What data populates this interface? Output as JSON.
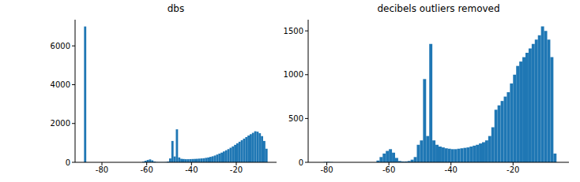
{
  "chart_data": [
    {
      "type": "histogram",
      "title": "dbs",
      "color": "#1f77b4",
      "bins": [
        -88,
        -87,
        -86,
        -85,
        -84,
        -83,
        -82,
        -81,
        -80,
        -79,
        -78,
        -77,
        -76,
        -75,
        -74,
        -73,
        -72,
        -71,
        -70,
        -69,
        -68,
        -67,
        -66,
        -65,
        -64,
        -63,
        -62,
        -61,
        -60,
        -59,
        -58,
        -57,
        -56,
        -55,
        -54,
        -53,
        -52,
        -51,
        -50,
        -49,
        -48,
        -47,
        -46,
        -45,
        -44,
        -43,
        -42,
        -41,
        -40,
        -39,
        -38,
        -37,
        -36,
        -35,
        -34,
        -33,
        -32,
        -31,
        -30,
        -29,
        -28,
        -27,
        -26,
        -25,
        -24,
        -23,
        -22,
        -21,
        -20,
        -19,
        -18,
        -17,
        -16,
        -15,
        -14,
        -13,
        -12,
        -11,
        -10,
        -9,
        -8,
        -7,
        -6
      ],
      "counts": [
        7000,
        0,
        0,
        0,
        0,
        0,
        0,
        0,
        0,
        0,
        0,
        0,
        0,
        0,
        0,
        0,
        0,
        0,
        0,
        0,
        0,
        0,
        0,
        0,
        0,
        0,
        30,
        80,
        120,
        150,
        100,
        40,
        15,
        10,
        10,
        10,
        15,
        40,
        200,
        1100,
        300,
        1700,
        250,
        180,
        170,
        160,
        160,
        165,
        170,
        175,
        180,
        190,
        200,
        210,
        230,
        250,
        280,
        310,
        350,
        400,
        450,
        500,
        560,
        620,
        680,
        750,
        820,
        900,
        980,
        1060,
        1140,
        1220,
        1300,
        1380,
        1450,
        1520,
        1600,
        1580,
        1500,
        1350,
        1100,
        700
      ],
      "xlim": [
        -92,
        -2
      ],
      "xticks": [
        -80,
        -60,
        -40,
        -20
      ],
      "ylim": [
        0,
        7350
      ],
      "yticks": [
        0,
        2000,
        4000,
        6000
      ]
    },
    {
      "type": "histogram",
      "title": "decibels outliers removed",
      "color": "#1f77b4",
      "bins": [
        -82,
        -81,
        -80,
        -79,
        -78,
        -77,
        -76,
        -75,
        -74,
        -73,
        -72,
        -71,
        -70,
        -69,
        -68,
        -67,
        -66,
        -65,
        -64,
        -63,
        -62,
        -61,
        -60,
        -59,
        -58,
        -57,
        -56,
        -55,
        -54,
        -53,
        -52,
        -51,
        -50,
        -49,
        -48,
        -47,
        -46,
        -45,
        -44,
        -43,
        -42,
        -41,
        -40,
        -39,
        -38,
        -37,
        -36,
        -35,
        -34,
        -33,
        -32,
        -31,
        -30,
        -29,
        -28,
        -27,
        -26,
        -25,
        -24,
        -23,
        -22,
        -21,
        -20,
        -19,
        -18,
        -17,
        -16,
        -15,
        -14,
        -13,
        -12,
        -11,
        -10,
        -9,
        -8,
        -7,
        -6
      ],
      "counts": [
        0,
        3,
        5,
        2,
        0,
        0,
        0,
        0,
        0,
        0,
        0,
        0,
        0,
        0,
        0,
        0,
        0,
        0,
        20,
        60,
        100,
        130,
        150,
        110,
        50,
        15,
        10,
        10,
        15,
        30,
        60,
        200,
        250,
        950,
        300,
        1350,
        250,
        200,
        180,
        170,
        160,
        155,
        150,
        150,
        155,
        160,
        165,
        170,
        180,
        190,
        200,
        215,
        230,
        250,
        300,
        400,
        600,
        650,
        700,
        750,
        800,
        900,
        1000,
        1100,
        1150,
        1200,
        1250,
        1300,
        1350,
        1400,
        1450,
        1550,
        1500,
        1400,
        1200,
        100
      ],
      "xlim": [
        -86,
        -2
      ],
      "xticks": [
        -80,
        -60,
        -40,
        -20
      ],
      "ylim": [
        0,
        1627.5
      ],
      "yticks": [
        0,
        500,
        1000,
        1500
      ]
    }
  ]
}
